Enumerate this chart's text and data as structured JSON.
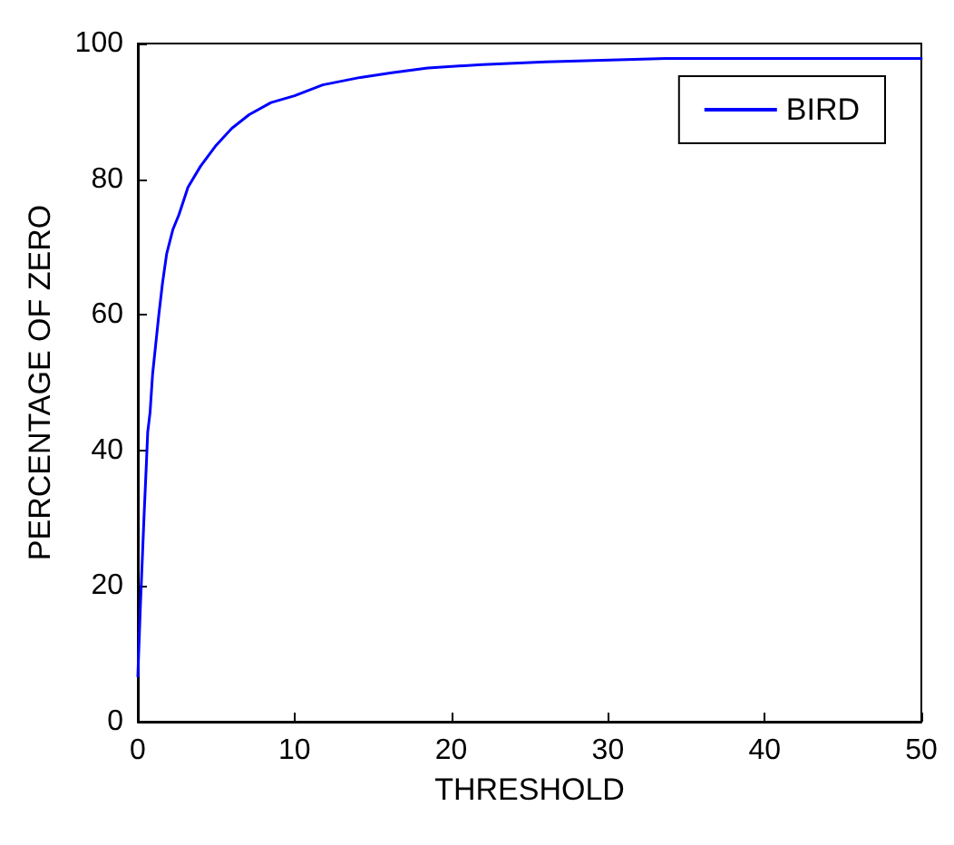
{
  "chart_data": {
    "type": "line",
    "xlabel": "THRESHOLD",
    "ylabel": "PERCENTAGE OF ZERO",
    "series": [
      {
        "name": "BIRD",
        "color": "#0000ff",
        "x": [
          0,
          0.16,
          0.4,
          0.55,
          0.63,
          0.78,
          0.94,
          1.18,
          1.33,
          1.57,
          1.84,
          2.24,
          2.63,
          3.2,
          4,
          5,
          6,
          7.1,
          8.5,
          10,
          11.8,
          14.2,
          16.2,
          18.5,
          22,
          26,
          33.7,
          40,
          50
        ],
        "values": [
          6.7,
          16.9,
          30.5,
          38.3,
          42.7,
          45.6,
          51.2,
          56.5,
          59.8,
          64.6,
          69,
          72.6,
          74.8,
          78.8,
          81.9,
          85,
          87.5,
          89.5,
          91.3,
          92.3,
          93.9,
          95,
          95.7,
          96.4,
          96.9,
          97.3,
          97.8,
          97.8,
          97.8
        ]
      }
    ],
    "xlim": [
      0,
      50
    ],
    "xticks": [
      0,
      10,
      20,
      30,
      40,
      50
    ],
    "ylim": [
      0,
      100
    ],
    "yticks": [
      0,
      20,
      40,
      60,
      80,
      100
    ],
    "grid": false,
    "legend": "top right",
    "marker": "none",
    "line_style": "solid"
  }
}
